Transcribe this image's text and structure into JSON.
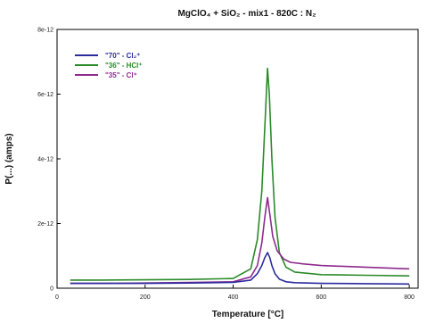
{
  "chart_data": {
    "type": "line",
    "title": "MgClO₄ + SiO₂ - mix1 - 820C : N₂",
    "xlabel": "Temperature  [°C]",
    "ylabel": "P(...) (amps)",
    "xlim": [
      0,
      820
    ],
    "ylim": [
      0,
      8e-12
    ],
    "xticks": [
      0,
      200,
      400,
      600,
      800
    ],
    "xtick_labels": [
      "0",
      "200",
      "400",
      "600",
      "800"
    ],
    "yticks": [
      0,
      2e-12,
      4e-12,
      6e-12,
      8e-12
    ],
    "ytick_labels": [
      "0",
      "2e-12",
      "4e-12",
      "6e-12",
      "8e-12"
    ],
    "grid": false,
    "legend_position": "top-left",
    "series": [
      {
        "name": "\"70\" - Cl₂⁺",
        "color": "#2b2b9e",
        "x": [
          30,
          100,
          200,
          300,
          400,
          440,
          455,
          465,
          472,
          478,
          483,
          488,
          495,
          505,
          520,
          540,
          600,
          700,
          800
        ],
        "y": [
          1.5e-13,
          1.5e-13,
          1.5e-13,
          1.6e-13,
          1.8e-13,
          2.5e-13,
          4.5e-13,
          7e-13,
          9.5e-13,
          1.1e-12,
          9.5e-13,
          7e-13,
          4.5e-13,
          2.8e-13,
          2e-13,
          1.7e-13,
          1.5e-13,
          1.4e-13,
          1.3e-13
        ]
      },
      {
        "name": "\"36\" - HCl⁺",
        "color": "#2a8a2a",
        "x": [
          30,
          100,
          200,
          300,
          400,
          440,
          455,
          465,
          472,
          478,
          482,
          488,
          495,
          505,
          520,
          540,
          600,
          700,
          800
        ],
        "y": [
          2.5e-13,
          2.5e-13,
          2.6e-13,
          2.7e-13,
          3e-13,
          6e-13,
          1.5e-12,
          3e-12,
          5e-12,
          6.8e-12,
          6e-12,
          4e-12,
          2.2e-12,
          1.1e-12,
          6.5e-13,
          5e-13,
          4.2e-13,
          4e-13,
          3.8e-13
        ]
      },
      {
        "name": "\"35\" - Cl⁺",
        "color": "#8e2a8e",
        "x": [
          30,
          100,
          200,
          300,
          400,
          440,
          455,
          465,
          472,
          478,
          483,
          490,
          500,
          515,
          530,
          560,
          600,
          700,
          800
        ],
        "y": [
          1.5e-13,
          1.5e-13,
          1.6e-13,
          1.8e-13,
          2e-13,
          3.5e-13,
          7e-13,
          1.4e-12,
          2.2e-12,
          2.8e-12,
          2.3e-12,
          1.6e-12,
          1.15e-12,
          9e-13,
          8e-13,
          7.5e-13,
          7e-13,
          6.5e-13,
          6e-13
        ]
      }
    ]
  }
}
